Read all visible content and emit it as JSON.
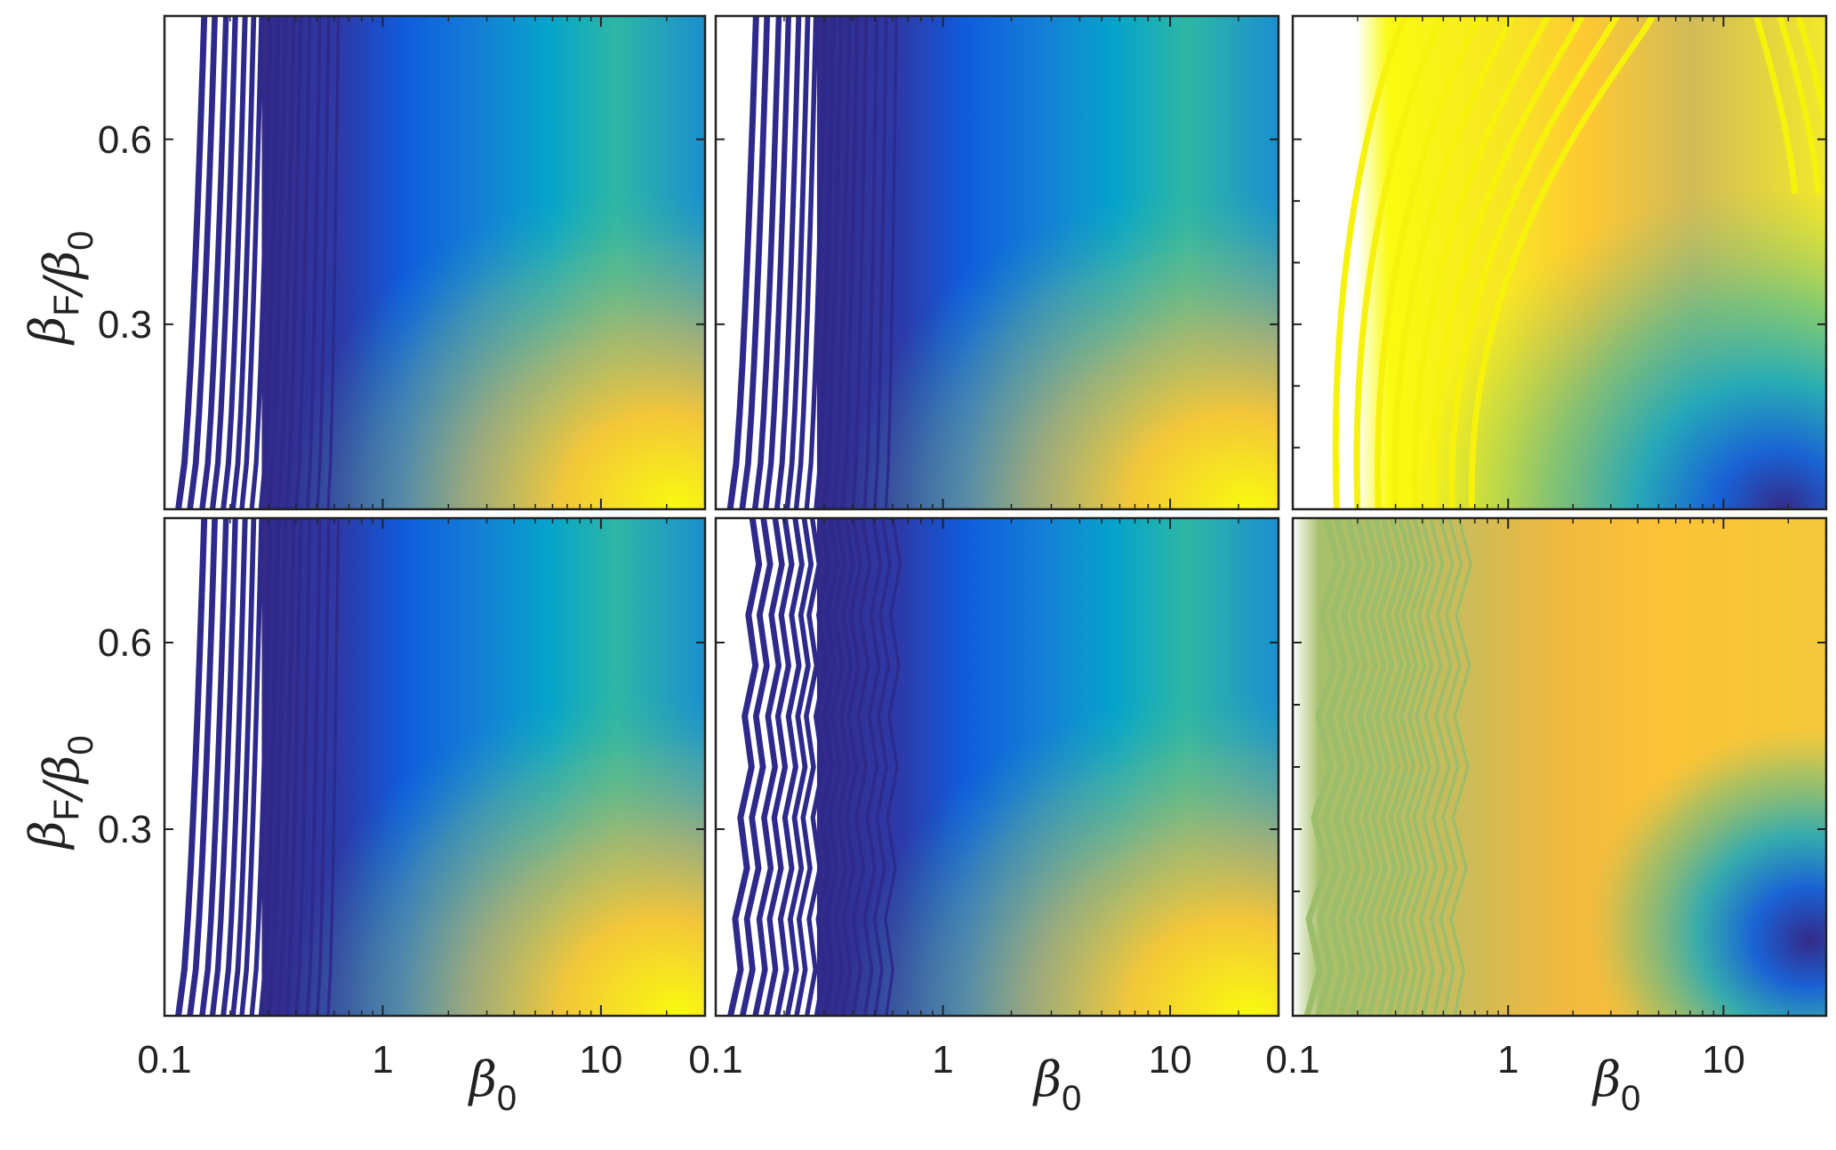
{
  "colors": {
    "parula": [
      "#352a87",
      "#0f5cdd",
      "#1481d6",
      "#06a4ca",
      "#2eb7a4",
      "#87bf77",
      "#d1bb59",
      "#fec832",
      "#f9fb0e"
    ],
    "frame": "#222222",
    "background": "#ffffff"
  },
  "chart_data": [
    {
      "panel": "top-left",
      "type": "heatmap",
      "xscale": "log",
      "xlim": [
        0.1,
        30
      ],
      "ylim": [
        0,
        0.8
      ],
      "xticks": [],
      "yticks": [
        "0.6",
        "0.3"
      ],
      "xlabel": "",
      "ylabel": "β_F/β_0",
      "color_trend": "low (dark blue) at small β_0, rising to high (yellow) toward large β_0 and small β_F/β_0"
    },
    {
      "panel": "top-center",
      "type": "heatmap",
      "xscale": "log",
      "xlim": [
        0.1,
        30
      ],
      "ylim": [
        0,
        0.8
      ],
      "xticks": [],
      "yticks": [],
      "xlabel": "",
      "ylabel": "",
      "color_trend": "same pattern as top-left"
    },
    {
      "panel": "top-right",
      "type": "heatmap",
      "xscale": "log",
      "xlim": [
        0.1,
        30
      ],
      "ylim": [
        0,
        0.8
      ],
      "xticks": [],
      "yticks": [],
      "xlabel": "",
      "ylabel": "",
      "color_trend": "inverted: high (yellow) at small β_0, low (dark blue) at large β_0 and small β_F/β_0"
    },
    {
      "panel": "bottom-left",
      "type": "heatmap",
      "xscale": "log",
      "xlim": [
        0.1,
        30
      ],
      "ylim": [
        0,
        0.8
      ],
      "xticks": [
        "0.1",
        "1",
        "10"
      ],
      "yticks": [
        "0.6",
        "0.3"
      ],
      "xlabel": "β_0",
      "ylabel": "β_F/β_0",
      "color_trend": "low (dark blue) at small β_0, rising to yellow at large β_0 and small β_F/β_0"
    },
    {
      "panel": "bottom-center",
      "type": "heatmap",
      "xscale": "log",
      "xlim": [
        0.1,
        30
      ],
      "ylim": [
        0,
        0.8
      ],
      "xticks": [
        "0.1",
        "1",
        "10"
      ],
      "yticks": [],
      "xlabel": "β_0",
      "ylabel": "",
      "color_trend": "low at small β_0, yellow near large β_0 and small β_F/β_0 with noise"
    },
    {
      "panel": "bottom-right",
      "type": "heatmap",
      "xscale": "log",
      "xlim": [
        0.1,
        30
      ],
      "ylim": [
        0,
        0.8
      ],
      "xticks": [
        "0.1",
        "1",
        "10"
      ],
      "yticks": [],
      "xlabel": "β_0",
      "ylabel": "",
      "color_trend": "olive/orange across most of the domain, dark blue near large β_0 and small β_F/β_0"
    }
  ]
}
